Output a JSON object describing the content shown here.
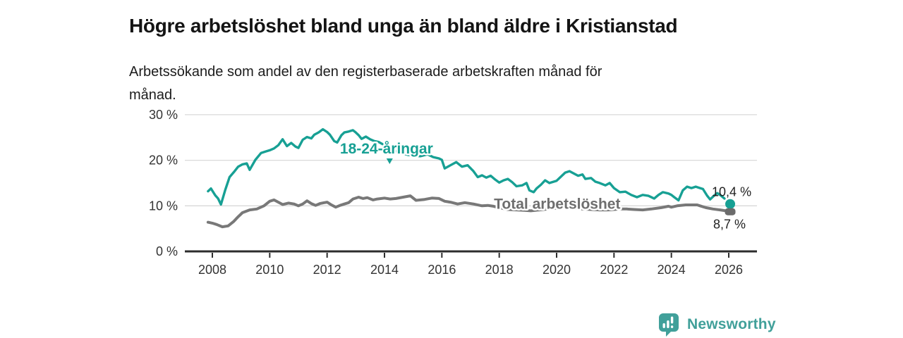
{
  "header": {
    "title": "Högre arbetslöshet bland unga än bland äldre i Kristianstad",
    "subtitle": "Arbetssökande som andel av den registerbaserade arbetskraften månad för månad."
  },
  "footer": {
    "brand": "Newsworthy"
  },
  "colors": {
    "youth_line": "#17a094",
    "total_line": "#787878",
    "total_label": "#6e6e6e",
    "end_marker_gray": "#6b6b6b",
    "axis": "#2d2d2d",
    "gridline": "#d9d9d9",
    "tick_text": "#333333",
    "end_label_text": "#1f1f1f",
    "brand_teal": "#41a09a"
  },
  "chart_data": {
    "type": "line",
    "title": "Högre arbetslöshet bland unga än bland äldre i Kristianstad",
    "subtitle": "Arbetssökande som andel av den registerbaserade arbetskraften månad för månad.",
    "xlabel": "",
    "ylabel": "",
    "xlim": [
      2007.05,
      2027.0
    ],
    "ylim": [
      0,
      30
    ],
    "grid": "horizontal",
    "legend_position": "inline-labels",
    "x_axis": {
      "ticks": [
        2008,
        2010,
        2012,
        2014,
        2016,
        2018,
        2020,
        2022,
        2024,
        2026
      ]
    },
    "y_axis": {
      "ticks": [
        {
          "value": 0,
          "label": "0 %"
        },
        {
          "value": 10,
          "label": "10 %"
        },
        {
          "value": 20,
          "label": "20 %"
        },
        {
          "value": 30,
          "label": "30 %"
        }
      ]
    },
    "series": [
      {
        "id": "youth-18-24",
        "label": "18-24-åringar",
        "color": "#17a094",
        "label_color": "#17a094",
        "label_anchor": {
          "t": 2014.07,
          "v": 22.6
        },
        "caret": {
          "t": 2014.18,
          "v": 20.1
        },
        "line_width": 3.4,
        "dash_from_t": 2025.7,
        "end_marker": "circle",
        "end_value": 10.4,
        "end_label": "10,4 %",
        "points": [
          [
            2007.85,
            13.2
          ],
          [
            2007.95,
            13.8
          ],
          [
            2008.1,
            12.3
          ],
          [
            2008.2,
            11.6
          ],
          [
            2008.3,
            10.3
          ],
          [
            2008.45,
            13.5
          ],
          [
            2008.6,
            16.3
          ],
          [
            2008.75,
            17.4
          ],
          [
            2008.9,
            18.6
          ],
          [
            2009.05,
            19.1
          ],
          [
            2009.2,
            19.3
          ],
          [
            2009.3,
            17.9
          ],
          [
            2009.5,
            20.1
          ],
          [
            2009.7,
            21.6
          ],
          [
            2009.85,
            21.9
          ],
          [
            2010.0,
            22.2
          ],
          [
            2010.15,
            22.6
          ],
          [
            2010.3,
            23.3
          ],
          [
            2010.45,
            24.6
          ],
          [
            2010.6,
            23.1
          ],
          [
            2010.75,
            23.8
          ],
          [
            2010.9,
            23.0
          ],
          [
            2011.0,
            22.7
          ],
          [
            2011.15,
            24.5
          ],
          [
            2011.3,
            25.1
          ],
          [
            2011.45,
            24.8
          ],
          [
            2011.55,
            25.6
          ],
          [
            2011.7,
            26.1
          ],
          [
            2011.85,
            26.8
          ],
          [
            2012.0,
            26.2
          ],
          [
            2012.1,
            25.6
          ],
          [
            2012.25,
            24.2
          ],
          [
            2012.35,
            23.9
          ],
          [
            2012.5,
            25.5
          ],
          [
            2012.6,
            26.1
          ],
          [
            2012.75,
            26.3
          ],
          [
            2012.9,
            26.6
          ],
          [
            2013.0,
            26.1
          ],
          [
            2013.1,
            25.5
          ],
          [
            2013.2,
            24.7
          ],
          [
            2013.35,
            25.2
          ],
          [
            2013.5,
            24.6
          ],
          [
            2013.65,
            24.2
          ],
          [
            2013.8,
            24.0
          ],
          [
            2014.0,
            23.3
          ],
          [
            2014.2,
            22.6
          ],
          [
            2014.4,
            22.0
          ],
          [
            2014.6,
            21.6
          ],
          [
            2014.8,
            21.2
          ],
          [
            2015.0,
            21.0
          ],
          [
            2015.25,
            20.9
          ],
          [
            2015.5,
            21.3
          ],
          [
            2015.7,
            20.7
          ],
          [
            2015.9,
            20.4
          ],
          [
            2016.0,
            20.1
          ],
          [
            2016.1,
            18.2
          ],
          [
            2016.3,
            18.9
          ],
          [
            2016.5,
            19.6
          ],
          [
            2016.7,
            18.6
          ],
          [
            2016.9,
            18.9
          ],
          [
            2017.1,
            17.6
          ],
          [
            2017.25,
            16.3
          ],
          [
            2017.4,
            16.7
          ],
          [
            2017.55,
            16.2
          ],
          [
            2017.7,
            16.6
          ],
          [
            2017.85,
            15.8
          ],
          [
            2018.0,
            15.1
          ],
          [
            2018.15,
            15.6
          ],
          [
            2018.3,
            15.9
          ],
          [
            2018.45,
            15.2
          ],
          [
            2018.6,
            14.3
          ],
          [
            2018.8,
            14.5
          ],
          [
            2018.95,
            15.0
          ],
          [
            2019.05,
            13.4
          ],
          [
            2019.2,
            13.0
          ],
          [
            2019.3,
            13.8
          ],
          [
            2019.45,
            14.6
          ],
          [
            2019.6,
            15.6
          ],
          [
            2019.75,
            15.0
          ],
          [
            2019.9,
            15.3
          ],
          [
            2020.0,
            15.5
          ],
          [
            2020.15,
            16.4
          ],
          [
            2020.3,
            17.3
          ],
          [
            2020.45,
            17.6
          ],
          [
            2020.6,
            17.1
          ],
          [
            2020.75,
            16.6
          ],
          [
            2020.9,
            16.9
          ],
          [
            2021.0,
            15.9
          ],
          [
            2021.2,
            16.1
          ],
          [
            2021.35,
            15.3
          ],
          [
            2021.5,
            15.0
          ],
          [
            2021.7,
            14.5
          ],
          [
            2021.85,
            15.0
          ],
          [
            2022.0,
            13.9
          ],
          [
            2022.2,
            13.0
          ],
          [
            2022.4,
            13.1
          ],
          [
            2022.6,
            12.4
          ],
          [
            2022.8,
            11.9
          ],
          [
            2023.0,
            12.4
          ],
          [
            2023.2,
            12.2
          ],
          [
            2023.4,
            11.6
          ],
          [
            2023.55,
            12.4
          ],
          [
            2023.7,
            13.0
          ],
          [
            2023.9,
            12.7
          ],
          [
            2024.0,
            12.4
          ],
          [
            2024.1,
            11.9
          ],
          [
            2024.25,
            11.2
          ],
          [
            2024.4,
            13.4
          ],
          [
            2024.55,
            14.2
          ],
          [
            2024.7,
            13.9
          ],
          [
            2024.85,
            14.2
          ],
          [
            2025.0,
            13.9
          ],
          [
            2025.1,
            13.7
          ],
          [
            2025.25,
            12.2
          ],
          [
            2025.35,
            11.4
          ],
          [
            2025.5,
            12.3
          ],
          [
            2025.6,
            12.8
          ],
          [
            2025.7,
            12.4
          ],
          [
            2025.85,
            11.6
          ],
          [
            2025.95,
            11.0
          ],
          [
            2026.05,
            10.4
          ]
        ]
      },
      {
        "id": "total",
        "label": "Total arbetslöshet",
        "color": "#787878",
        "label_color": "#6e6e6e",
        "label_anchor": {
          "t": 2020.02,
          "v": 10.4
        },
        "caret": null,
        "line_width": 4,
        "dash_from_t": null,
        "end_marker": "square",
        "end_value": 8.7,
        "end_label": "8,7 %",
        "points": [
          [
            2007.85,
            6.4
          ],
          [
            2008.0,
            6.2
          ],
          [
            2008.15,
            5.9
          ],
          [
            2008.35,
            5.4
          ],
          [
            2008.55,
            5.6
          ],
          [
            2008.75,
            6.6
          ],
          [
            2008.9,
            7.6
          ],
          [
            2009.05,
            8.5
          ],
          [
            2009.3,
            9.1
          ],
          [
            2009.55,
            9.3
          ],
          [
            2009.8,
            10.0
          ],
          [
            2010.0,
            11.0
          ],
          [
            2010.15,
            11.3
          ],
          [
            2010.3,
            10.8
          ],
          [
            2010.45,
            10.3
          ],
          [
            2010.65,
            10.6
          ],
          [
            2010.85,
            10.4
          ],
          [
            2011.0,
            10.0
          ],
          [
            2011.15,
            10.4
          ],
          [
            2011.3,
            11.1
          ],
          [
            2011.45,
            10.5
          ],
          [
            2011.6,
            10.1
          ],
          [
            2011.75,
            10.5
          ],
          [
            2011.9,
            10.7
          ],
          [
            2012.0,
            10.8
          ],
          [
            2012.15,
            10.2
          ],
          [
            2012.3,
            9.7
          ],
          [
            2012.45,
            10.1
          ],
          [
            2012.6,
            10.4
          ],
          [
            2012.75,
            10.7
          ],
          [
            2012.9,
            11.5
          ],
          [
            2013.1,
            11.9
          ],
          [
            2013.25,
            11.6
          ],
          [
            2013.4,
            11.8
          ],
          [
            2013.6,
            11.3
          ],
          [
            2013.75,
            11.5
          ],
          [
            2014.0,
            11.7
          ],
          [
            2014.2,
            11.5
          ],
          [
            2014.4,
            11.6
          ],
          [
            2014.65,
            11.9
          ],
          [
            2014.9,
            12.2
          ],
          [
            2015.1,
            11.2
          ],
          [
            2015.4,
            11.4
          ],
          [
            2015.65,
            11.7
          ],
          [
            2015.9,
            11.6
          ],
          [
            2016.1,
            11.0
          ],
          [
            2016.3,
            10.8
          ],
          [
            2016.55,
            10.4
          ],
          [
            2016.8,
            10.7
          ],
          [
            2017.1,
            10.4
          ],
          [
            2017.4,
            10.0
          ],
          [
            2017.6,
            10.1
          ],
          [
            2017.8,
            9.9
          ],
          [
            2018.0,
            9.6
          ],
          [
            2018.3,
            9.2
          ],
          [
            2018.6,
            9.1
          ],
          [
            2018.9,
            9.0
          ],
          [
            2019.1,
            8.9
          ],
          [
            2019.4,
            9.1
          ],
          [
            2019.7,
            9.3
          ],
          [
            2020.0,
            9.5
          ],
          [
            2020.3,
            9.9
          ],
          [
            2020.6,
            9.5
          ],
          [
            2020.9,
            9.3
          ],
          [
            2021.2,
            9.2
          ],
          [
            2021.5,
            9.1
          ],
          [
            2021.8,
            9.1
          ],
          [
            2022.0,
            9.2
          ],
          [
            2022.2,
            9.3
          ],
          [
            2022.45,
            9.3
          ],
          [
            2022.7,
            9.2
          ],
          [
            2023.0,
            9.1
          ],
          [
            2023.3,
            9.3
          ],
          [
            2023.65,
            9.6
          ],
          [
            2023.9,
            9.9
          ],
          [
            2024.0,
            9.7
          ],
          [
            2024.2,
            10.0
          ],
          [
            2024.5,
            10.2
          ],
          [
            2024.9,
            10.2
          ],
          [
            2025.0,
            10.0
          ],
          [
            2025.2,
            9.6
          ],
          [
            2025.45,
            9.3
          ],
          [
            2025.7,
            9.1
          ],
          [
            2025.9,
            8.9
          ],
          [
            2026.05,
            8.7
          ]
        ]
      }
    ]
  }
}
